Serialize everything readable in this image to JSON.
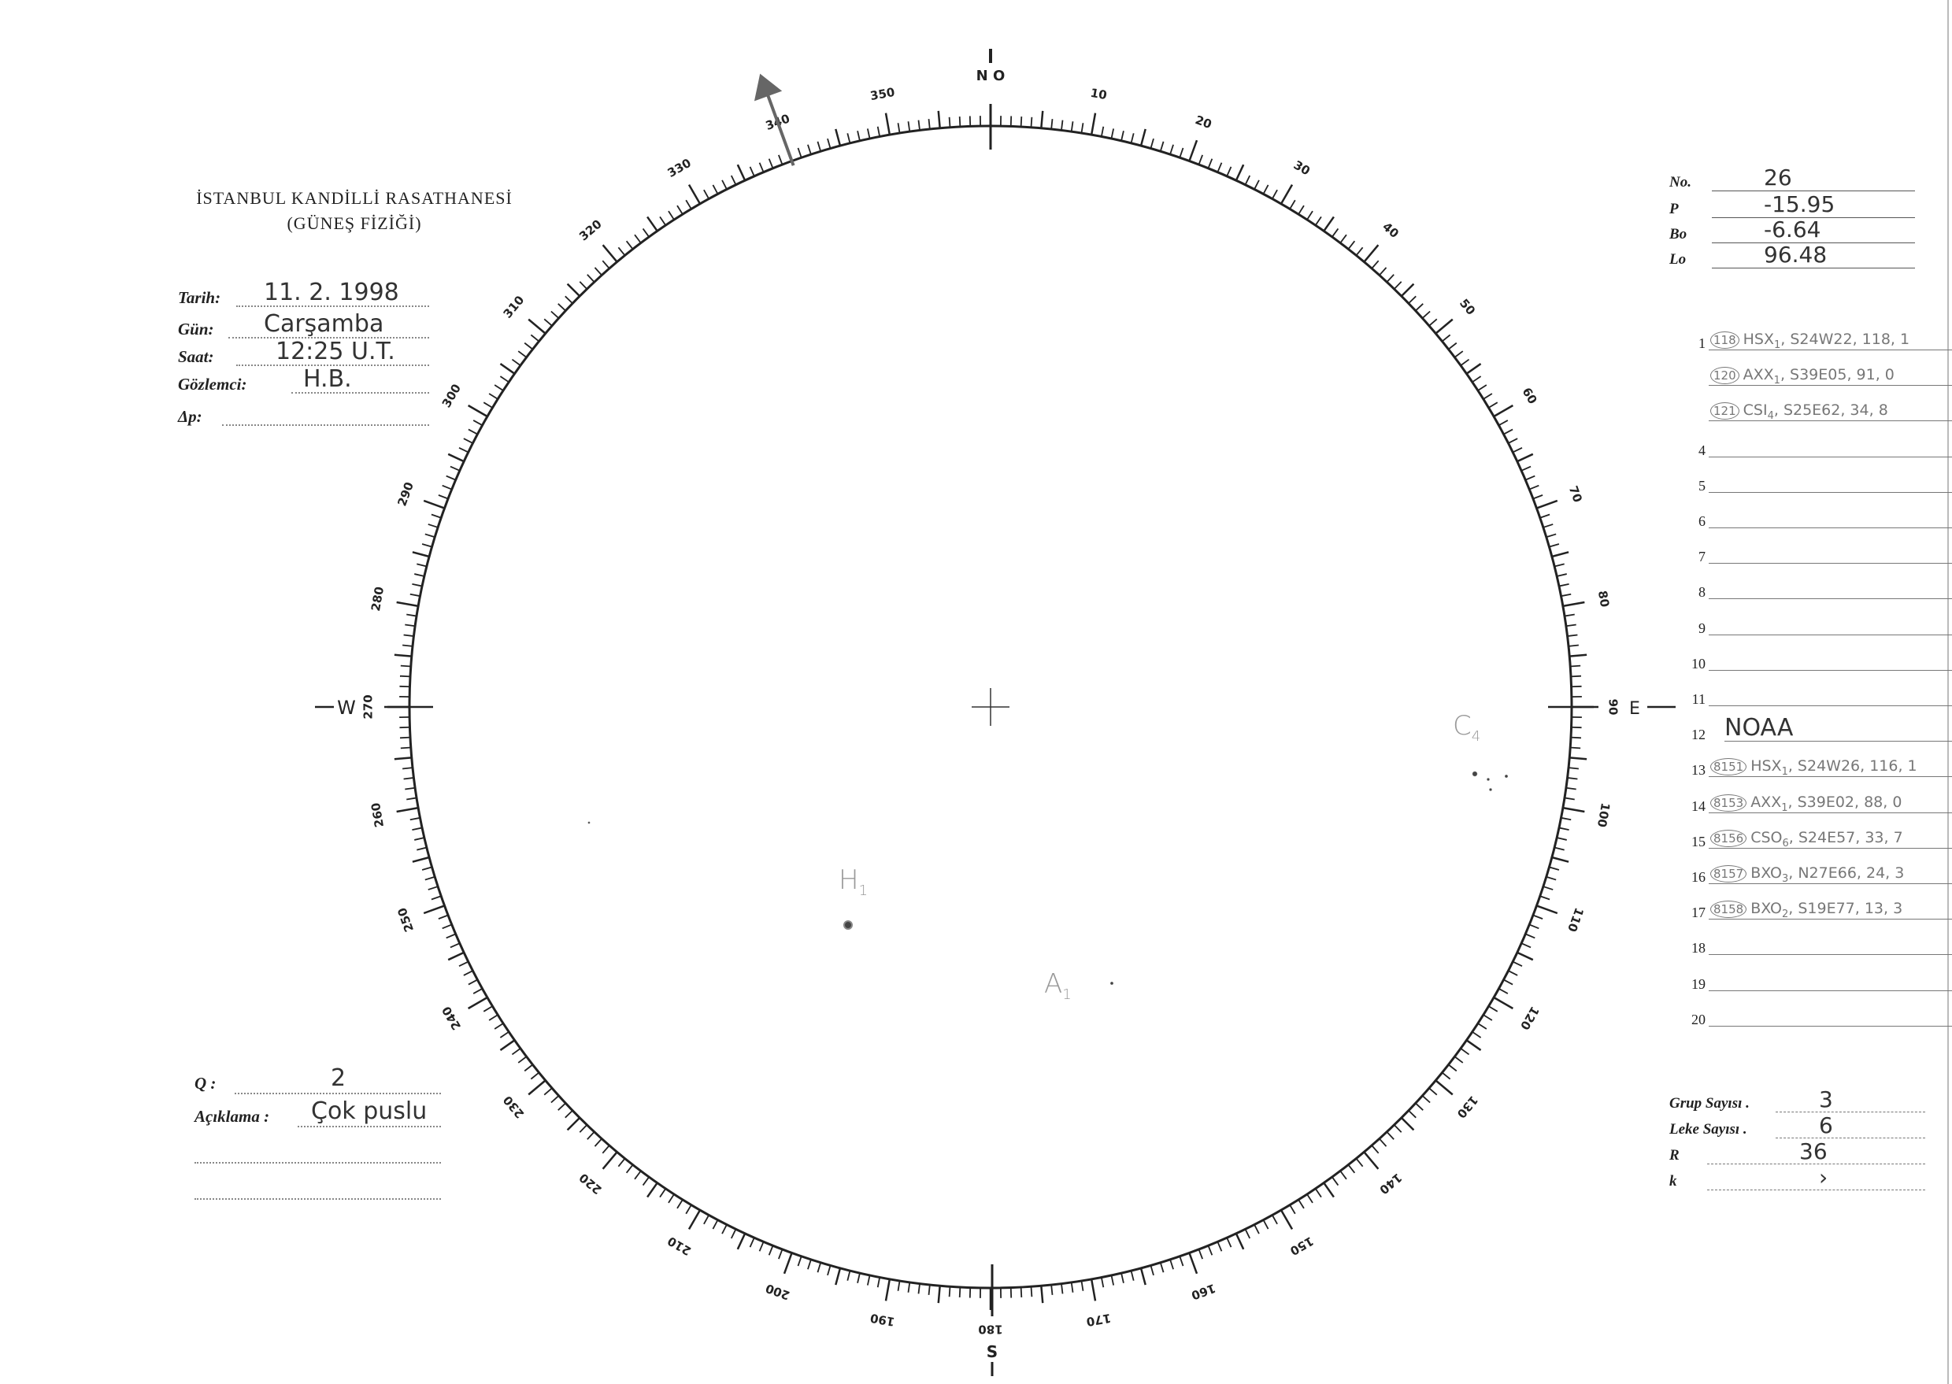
{
  "header": {
    "institution": "İSTANBUL KANDİLLİ RASATHANESİ",
    "department": "(GÜNEŞ FİZİĞİ)"
  },
  "observation": {
    "fields": [
      {
        "label": "Tarih:",
        "value": "11. 2. 1998"
      },
      {
        "label": "Gün:",
        "value": "Carşamba"
      },
      {
        "label": "Saat:",
        "value": "12:25 U.T."
      },
      {
        "label": "Gözlemci:",
        "value": "H.B."
      },
      {
        "label": "Δp:",
        "value": ""
      }
    ]
  },
  "ephemeris": [
    {
      "label": "No.",
      "value": "26"
    },
    {
      "label": "P",
      "value": "-15.95"
    },
    {
      "label": "Bo",
      "value": "-6.64"
    },
    {
      "label": "Lo",
      "value": "96.48"
    }
  ],
  "groups": [
    {
      "num": "1",
      "circled": "118",
      "cls": "HSX",
      "sub": "1",
      "rest": ", S24W22, 118, 1"
    },
    {
      "num": "",
      "circled": "120",
      "cls": "AXX",
      "sub": "1",
      "rest": ", S39E05, 91, 0"
    },
    {
      "num": "",
      "circled": "121",
      "cls": "CSI",
      "sub": "4",
      "rest": ", S25E62, 34, 8"
    },
    {
      "num": "4"
    },
    {
      "num": "5"
    },
    {
      "num": "6"
    },
    {
      "num": "7"
    },
    {
      "num": "8"
    },
    {
      "num": "9"
    },
    {
      "num": "10"
    },
    {
      "num": "11"
    },
    {
      "num": "12",
      "big": "NOAA"
    },
    {
      "num": "13",
      "circled": "8151",
      "cls": "HSX",
      "sub": "1",
      "rest": ", S24W26, 116, 1"
    },
    {
      "num": "14",
      "circled": "8153",
      "cls": "AXX",
      "sub": "1",
      "rest": ", S39E02, 88, 0"
    },
    {
      "num": "15",
      "circled": "8156",
      "cls": "CSO",
      "sub": "6",
      "rest": ", S24E57, 33, 7"
    },
    {
      "num": "16",
      "circled": "8157",
      "cls": "BXO",
      "sub": "3",
      "rest": ", N27E66, 24, 3"
    },
    {
      "num": "17",
      "circled": "8158",
      "cls": "BXO",
      "sub": "2",
      "rest": ", S19E77, 13, 3"
    },
    {
      "num": "18"
    },
    {
      "num": "19"
    },
    {
      "num": "20"
    }
  ],
  "counts": [
    {
      "label": "Grup Sayısı .",
      "value": "3"
    },
    {
      "label": "Leke Sayısı .",
      "value": "6"
    },
    {
      "label": "R",
      "value": "36"
    },
    {
      "label": "k",
      "value": "›"
    }
  ],
  "quality": {
    "q_label": "Q :",
    "q_value": "2",
    "note_label": "Açıklama :",
    "note_value": "Çok puslu"
  },
  "dial": {
    "labels": [
      "10",
      "20",
      "30",
      "40",
      "50",
      "60",
      "70",
      "80",
      "90",
      "100",
      "110",
      "120",
      "130",
      "140",
      "150",
      "160",
      "170",
      "180",
      "190",
      "200",
      "210",
      "220",
      "230",
      "240",
      "250",
      "260",
      "270",
      "280",
      "290",
      "300",
      "310",
      "320",
      "330",
      "340",
      "350"
    ],
    "north": "N O",
    "south": "S",
    "east": "E",
    "west": "W",
    "axis_arrow_angle_deg": 340
  },
  "sunspots": {
    "H": {
      "letter": "H",
      "sub": "1"
    },
    "A": {
      "letter": "A",
      "sub": "1"
    },
    "C": {
      "letter": "C",
      "sub": "4"
    }
  },
  "colors": {
    "ink": "#222222",
    "pencil": "#999999",
    "arrow": "#666666"
  }
}
